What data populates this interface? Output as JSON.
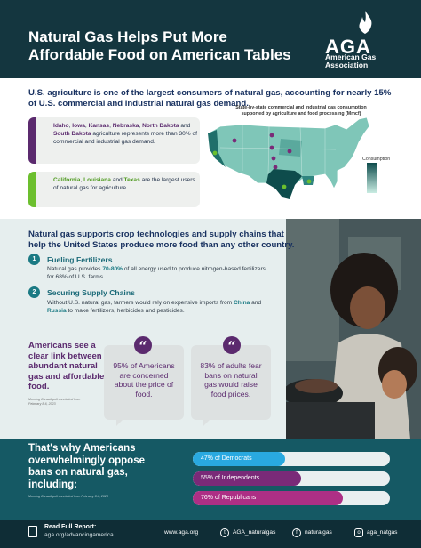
{
  "header": {
    "title": "Natural Gas Helps Put More Affordable Food on American Tables",
    "logo_abbr": "AGA",
    "logo_name": "American Gas Association"
  },
  "intro": "U.S. agriculture is one of the largest consumers of natural gas, accounting for nearly 15% of U.S. commercial and industrial natural gas demand.",
  "cards": {
    "card1": {
      "states": [
        "Idaho",
        "Iowa",
        "Kansas",
        "Nebraska",
        "North Dakota",
        "South Dakota"
      ],
      "sep1": ", ",
      "sep2": ", ",
      "sep3": ", ",
      "sep4": ", ",
      "and": " and ",
      "text": " agriculture represents more than 30% of commercial and industrial gas demand."
    },
    "card2": {
      "states": [
        "California",
        "Louisiana",
        "Texas"
      ],
      "sep1": ", ",
      "and": " and ",
      "text": " are the largest users of natural gas for agriculture."
    }
  },
  "map": {
    "title": "State-by-state commercial and industrial gas consumption supported by agriculture and food processing (Mmcf)",
    "legend_title": "Consumption",
    "colors": {
      "low": "#a9dccf",
      "mid": "#3a8f88",
      "high": "#0e4c4c",
      "dot": "#7a2a78"
    }
  },
  "middle": {
    "heading": "Natural gas supports crop technologies and supply chains that help the United States produce more food than any other country.",
    "points": [
      {
        "num": "1",
        "title": "Fueling Fertilizers",
        "pre": "Natural gas provides ",
        "highlight": "70-80%",
        "post": " of all energy used to produce nitrogen-based fertilizers for 68% of U.S. farms."
      },
      {
        "num": "2",
        "title": "Securing Supply Chains",
        "pre": "Without U.S. natural gas, farmers would rely on expensive imports from ",
        "highlight1": "China",
        "mid": " and ",
        "highlight2": "Russia",
        "post": " to make fertilizers, herbicides and pesticides."
      }
    ],
    "link_heading": "Americans see a clear link between abundant natural gas and affordable food.",
    "source1": "Morning Consult poll concluded from February 8-6, 2023",
    "quotes": [
      {
        "icon": "“",
        "text": "95% of Americans are concerned about the price of food."
      },
      {
        "icon": "“",
        "text": "83% of adults fear bans on natural gas would raise food prices."
      }
    ]
  },
  "bottom": {
    "heading": "That's why Americans overwhelmingly oppose bans on natural gas, including:",
    "source2": "Morning Consult poll concluded from February 8-6, 2023",
    "bars": [
      {
        "label": "47% of Democrats",
        "value": 47,
        "color": "#29a9e0"
      },
      {
        "label": "55% of Independents",
        "value": 55,
        "color": "#7a2a78"
      },
      {
        "label": "76% of Republicans",
        "value": 76,
        "color": "#ad2f85"
      }
    ]
  },
  "footer": {
    "label": "Read Full Report:",
    "url": "aga.org/advancingamerica",
    "website": "www.aga.org",
    "twitter": "AGA_naturalgas",
    "facebook": "naturalgas",
    "instagram": "aga_natgas",
    "icons": [
      "document-icon",
      "twitter-icon",
      "facebook-icon",
      "instagram-icon"
    ]
  }
}
